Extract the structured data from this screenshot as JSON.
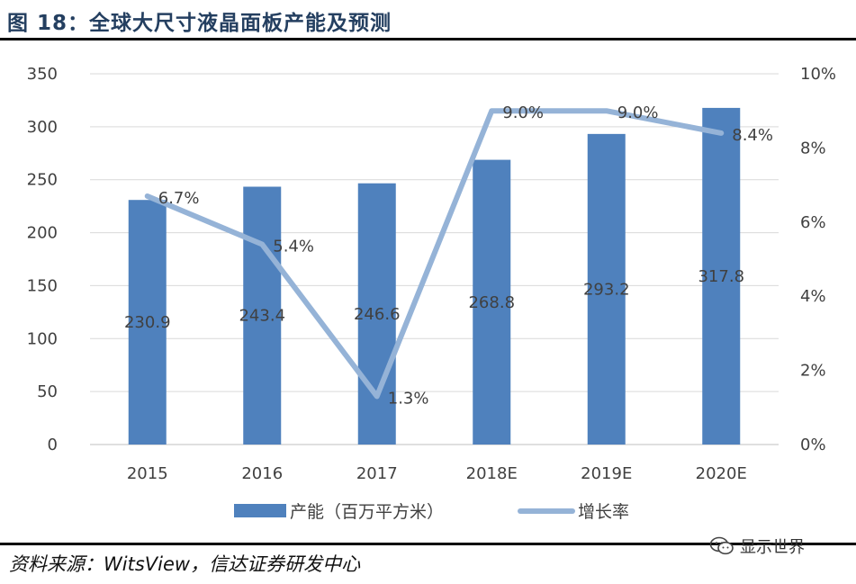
{
  "header": {
    "title": "图 18：全球大尺寸液晶面板产能及预测"
  },
  "footer": {
    "source": "资料来源：WitsView，信达证券研发中心",
    "watermark": "显示世界",
    "watermark_icon": "wechat-icon"
  },
  "colors": {
    "bar": "#4f81bd",
    "line": "#95b3d7",
    "axis_text": "#404040"
  },
  "chart_data": {
    "type": "bar",
    "categories": [
      "2015",
      "2016",
      "2017",
      "2018E",
      "2019E",
      "2020E"
    ],
    "series": [
      {
        "name": "产能（百万平方米）",
        "type": "bar",
        "axis": "left",
        "values": [
          230.9,
          243.4,
          246.6,
          268.8,
          293.2,
          317.8
        ],
        "labels": [
          "230.9",
          "243.4",
          "246.6",
          "268.8",
          "293.2",
          "317.8"
        ]
      },
      {
        "name": "增长率",
        "type": "line",
        "axis": "right",
        "values": [
          6.7,
          5.4,
          1.3,
          9.0,
          9.0,
          8.4
        ],
        "labels": [
          "6.7%",
          "5.4%",
          "1.3%",
          "9.0%",
          "9.0%",
          "8.4%"
        ]
      }
    ],
    "y_left": {
      "ylim": [
        0,
        350
      ],
      "ticks": [
        "0",
        "50",
        "100",
        "150",
        "200",
        "250",
        "300",
        "350"
      ]
    },
    "y_right": {
      "ylim": [
        0,
        10
      ],
      "ticks": [
        "0%",
        "2%",
        "4%",
        "6%",
        "8%",
        "10%"
      ]
    },
    "grid": true,
    "legend": "bottom"
  }
}
